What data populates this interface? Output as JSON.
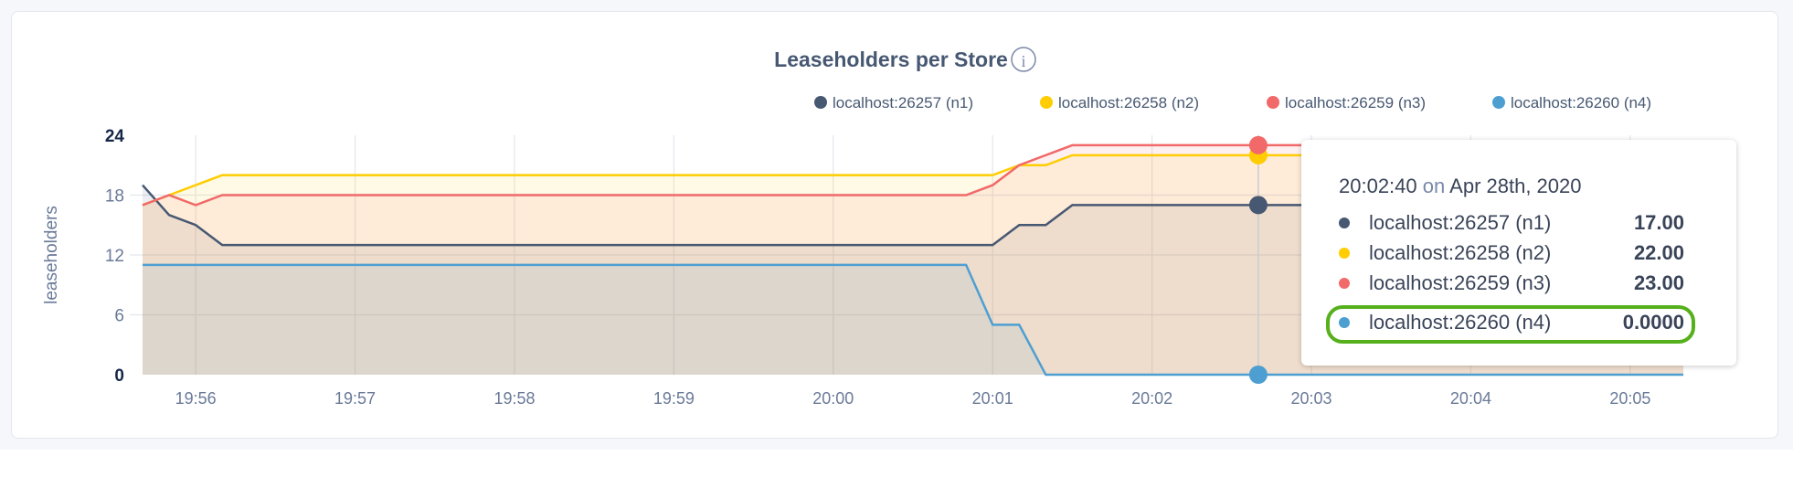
{
  "chart_data": {
    "type": "area",
    "title": "Leaseholders per Store",
    "title_icon": "info-icon",
    "ylabel": "leaseholders",
    "xlabel": "",
    "ylim": [
      0,
      24
    ],
    "yticks": [
      "0",
      "6",
      "12",
      "18",
      "24"
    ],
    "xticks": [
      "19:56",
      "19:57",
      "19:58",
      "19:59",
      "20:00",
      "20:01",
      "20:02",
      "20:03",
      "20:04",
      "20:05"
    ],
    "grid": true,
    "legend_position": "top-right",
    "x": [
      "19:55:40",
      "19:55:50",
      "19:56:00",
      "19:56:10",
      "19:56:20",
      "19:56:30",
      "19:56:40",
      "19:56:50",
      "19:57:00",
      "19:57:10",
      "19:57:20",
      "19:57:30",
      "19:57:40",
      "19:57:50",
      "19:58:00",
      "19:58:10",
      "19:58:20",
      "19:58:30",
      "19:58:40",
      "19:58:50",
      "19:59:00",
      "19:59:10",
      "19:59:20",
      "19:59:30",
      "19:59:40",
      "19:59:50",
      "20:00:00",
      "20:00:10",
      "20:00:20",
      "20:00:30",
      "20:00:40",
      "20:00:50",
      "20:01:00",
      "20:01:10",
      "20:01:20",
      "20:01:30",
      "20:01:40",
      "20:01:50",
      "20:02:00",
      "20:02:10",
      "20:02:20",
      "20:02:30",
      "20:02:40",
      "20:02:50",
      "20:03:00",
      "20:03:10",
      "20:03:20",
      "20:03:30",
      "20:03:40",
      "20:03:50",
      "20:04:00",
      "20:04:10",
      "20:04:20",
      "20:04:30",
      "20:04:40",
      "20:04:50",
      "20:05:00",
      "20:05:10",
      "20:05:20"
    ],
    "series": [
      {
        "name": "localhost:26257 (n1)",
        "color": "#475872",
        "values": [
          19,
          16,
          15,
          13,
          13,
          13,
          13,
          13,
          13,
          13,
          13,
          13,
          13,
          13,
          13,
          13,
          13,
          13,
          13,
          13,
          13,
          13,
          13,
          13,
          13,
          13,
          13,
          13,
          13,
          13,
          13,
          13,
          13,
          15,
          15,
          17,
          17,
          17,
          17,
          17,
          17,
          17,
          17,
          17,
          17,
          17,
          17,
          17,
          17,
          17,
          17,
          17,
          17,
          17,
          17,
          17,
          17,
          17,
          17
        ]
      },
      {
        "name": "localhost:26258 (n2)",
        "color": "#ffcd02",
        "values": [
          17,
          18,
          19,
          20,
          20,
          20,
          20,
          20,
          20,
          20,
          20,
          20,
          20,
          20,
          20,
          20,
          20,
          20,
          20,
          20,
          20,
          20,
          20,
          20,
          20,
          20,
          20,
          20,
          20,
          20,
          20,
          20,
          20,
          21,
          21,
          22,
          22,
          22,
          22,
          22,
          22,
          22,
          22,
          22,
          22,
          22,
          22,
          22,
          22,
          22,
          22,
          22,
          22,
          22,
          22,
          22,
          22,
          22,
          22
        ]
      },
      {
        "name": "localhost:26259 (n3)",
        "color": "#f16969",
        "values": [
          17,
          18,
          17,
          18,
          18,
          18,
          18,
          18,
          18,
          18,
          18,
          18,
          18,
          18,
          18,
          18,
          18,
          18,
          18,
          18,
          18,
          18,
          18,
          18,
          18,
          18,
          18,
          18,
          18,
          18,
          18,
          18,
          19,
          21,
          22,
          23,
          23,
          23,
          23,
          23,
          23,
          23,
          23,
          23,
          23,
          23,
          23,
          23,
          23,
          23,
          23,
          23,
          23,
          23,
          23,
          23,
          23,
          23,
          23
        ]
      },
      {
        "name": "localhost:26260 (n4)",
        "color": "#4e9fd1",
        "values": [
          11,
          11,
          11,
          11,
          11,
          11,
          11,
          11,
          11,
          11,
          11,
          11,
          11,
          11,
          11,
          11,
          11,
          11,
          11,
          11,
          11,
          11,
          11,
          11,
          11,
          11,
          11,
          11,
          11,
          11,
          11,
          11,
          5,
          5,
          0,
          0,
          0,
          0,
          0,
          0,
          0,
          0,
          0,
          0,
          0,
          0,
          0,
          0,
          0,
          0,
          0,
          0,
          0,
          0,
          0,
          0,
          0,
          0,
          0
        ]
      }
    ],
    "hover": {
      "time": "20:02:40",
      "tooltip_time": "20:02:40",
      "tooltip_on": "on",
      "tooltip_date": "Apr 28th, 2020",
      "rows": [
        {
          "label": "localhost:26257 (n1)",
          "value": "17.00",
          "color": "#475872"
        },
        {
          "label": "localhost:26258 (n2)",
          "value": "22.00",
          "color": "#ffcd02"
        },
        {
          "label": "localhost:26259 (n3)",
          "value": "23.00",
          "color": "#f16969"
        },
        {
          "label": "localhost:26260 (n4)",
          "value": "0.0000",
          "color": "#4e9fd1"
        }
      ],
      "highlighted_row": "localhost:26260 (n4)",
      "highlight_color": "#55b01c"
    }
  }
}
